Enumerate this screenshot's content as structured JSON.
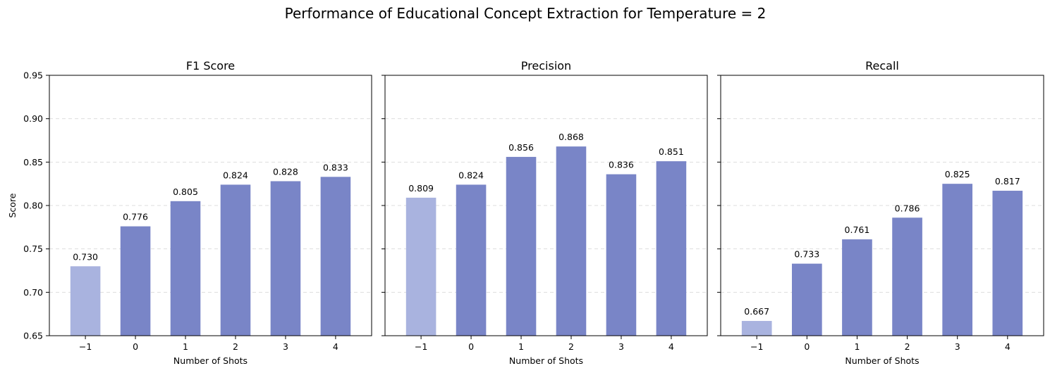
{
  "chart_data": {
    "type": "bar",
    "title": "Performance of Educational Concept Extraction for Temperature = 2",
    "ylabel": "Score",
    "ylim": [
      0.65,
      0.95
    ],
    "yticks": [
      "0.65",
      "0.70",
      "0.75",
      "0.80",
      "0.85",
      "0.90",
      "0.95"
    ],
    "grid": "horizontal dashed",
    "colors": {
      "baseline": "#a9b3df",
      "main": "#7985c7",
      "grid": "#dddddd",
      "axis": "#000000"
    },
    "panels": [
      {
        "title": "F1 Score",
        "xlabel": "Number of Shots",
        "categories": [
          "−1",
          "0",
          "1",
          "2",
          "3",
          "4"
        ],
        "values": [
          0.73,
          0.776,
          0.805,
          0.824,
          0.828,
          0.833
        ],
        "labels": [
          "0.730",
          "0.776",
          "0.805",
          "0.824",
          "0.828",
          "0.833"
        ]
      },
      {
        "title": "Precision",
        "xlabel": "Number of Shots",
        "categories": [
          "−1",
          "0",
          "1",
          "2",
          "3",
          "4"
        ],
        "values": [
          0.809,
          0.824,
          0.856,
          0.868,
          0.836,
          0.851
        ],
        "labels": [
          "0.809",
          "0.824",
          "0.856",
          "0.868",
          "0.836",
          "0.851"
        ]
      },
      {
        "title": "Recall",
        "xlabel": "Number of Shots",
        "categories": [
          "−1",
          "0",
          "1",
          "2",
          "3",
          "4"
        ],
        "values": [
          0.667,
          0.733,
          0.761,
          0.786,
          0.825,
          0.817
        ],
        "labels": [
          "0.667",
          "0.733",
          "0.761",
          "0.786",
          "0.825",
          "0.817"
        ]
      }
    ]
  }
}
